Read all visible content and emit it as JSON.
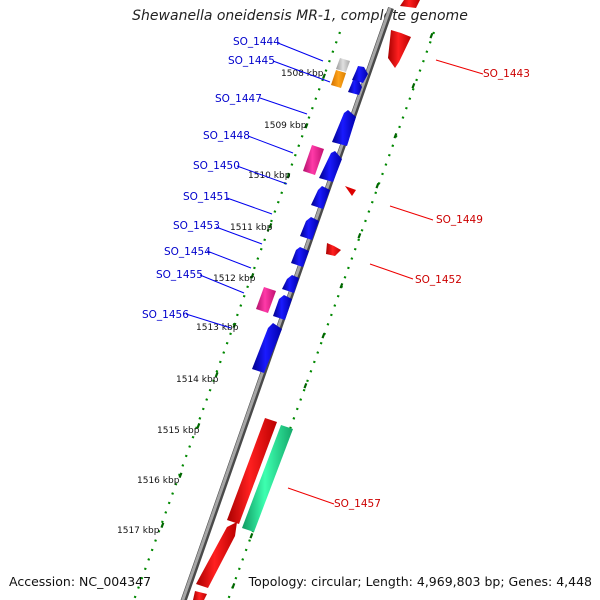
{
  "title": "Shewanella oneidensis MR-1, complete genome",
  "accession": "Accession: NC_004347",
  "topology": "Topology: circular; Length: 4,969,803 bp; Genes: 4,448",
  "colors": {
    "backbone": "#888888",
    "reverse_gene": "#0000ee",
    "forward_gene": "#ee0000",
    "pink_gene": "#ee1493",
    "orange_gene": "#ff9900",
    "gray_gene": "#c8c8c8",
    "green_gene": "#22ee99",
    "tick": "#008800",
    "blue_label": "#0000cc",
    "red_label": "#cc0000"
  },
  "kbp_marks": [
    "1508 kbp",
    "1509 kbp",
    "1510 kbp",
    "1511 kbp",
    "1512 kbp",
    "1513 kbp",
    "1514 kbp",
    "1515 kbp",
    "1516 kbp",
    "1517 kbp"
  ],
  "reverse_labels": [
    "SO_1444",
    "SO_1445",
    "SO_1447",
    "SO_1448",
    "SO_1450",
    "SO_1451",
    "SO_1453",
    "SO_1454",
    "SO_1455",
    "SO_1456"
  ],
  "forward_labels": [
    "SO_1443",
    "SO_1449",
    "SO_1452",
    "SO_1457"
  ]
}
